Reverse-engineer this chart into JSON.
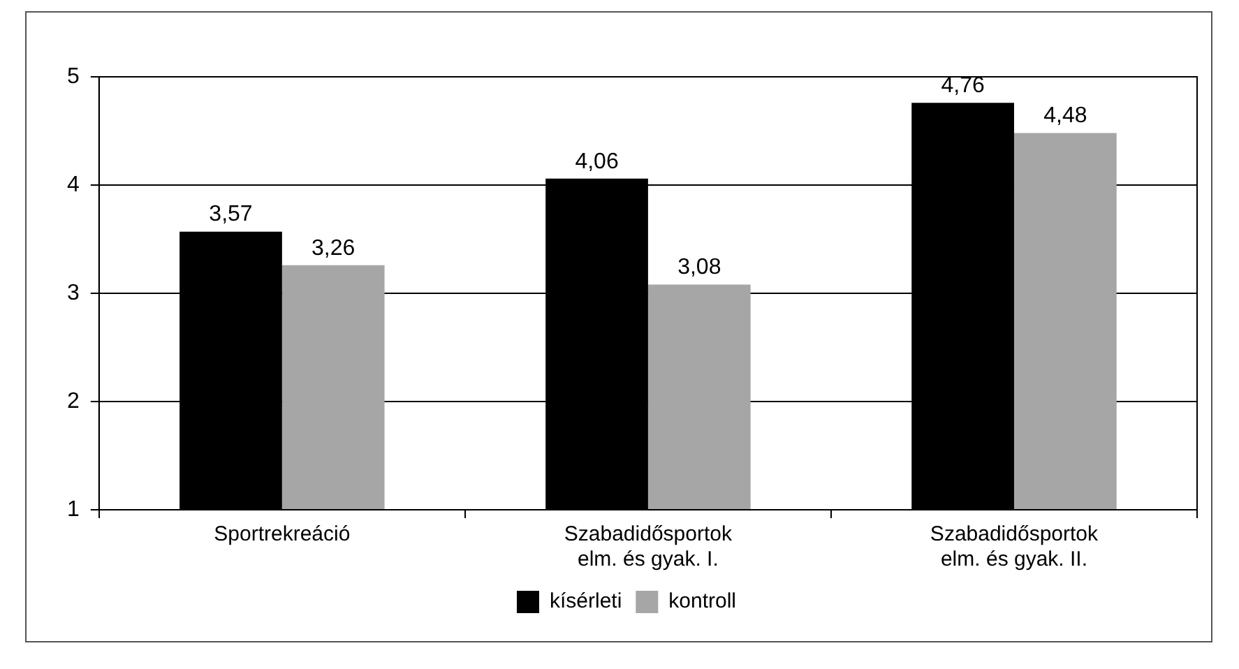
{
  "chart_data": {
    "type": "bar",
    "categories": [
      "Sportrekreáció",
      "Szabadidősportok elm. és gyak. I.",
      "Szabadidősportok elm. és gyak. II."
    ],
    "series": [
      {
        "name": "kísérleti",
        "color": "#000000",
        "values": [
          3.57,
          4.06,
          4.76
        ],
        "value_labels": [
          "3,57",
          "4,06",
          "4,76"
        ]
      },
      {
        "name": "kontroll",
        "color": "#a6a6a6",
        "values": [
          3.26,
          3.08,
          4.48
        ],
        "value_labels": [
          "3,26",
          "3,08",
          "4,48"
        ]
      }
    ],
    "ylim": [
      1,
      5
    ],
    "yticks": [
      1,
      2,
      3,
      4,
      5
    ],
    "grid": "y",
    "legend": "bottom"
  }
}
